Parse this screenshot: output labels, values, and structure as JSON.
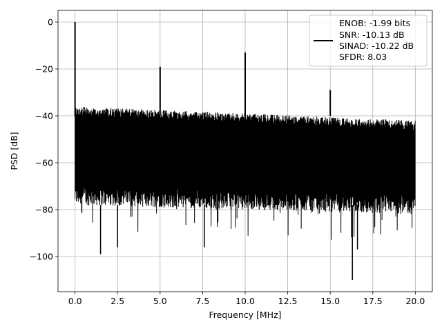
{
  "chart_data": {
    "type": "line",
    "xlabel": "Frequency [MHz]",
    "ylabel": "PSD [dB]",
    "xlim": [
      -1.0,
      21.0
    ],
    "ylim": [
      -115,
      5
    ],
    "xticks": [
      0.0,
      2.5,
      5.0,
      7.5,
      10.0,
      12.5,
      15.0,
      17.5,
      20.0
    ],
    "xtick_labels": [
      "0.0",
      "2.5",
      "5.0",
      "7.5",
      "10.0",
      "12.5",
      "15.0",
      "17.5",
      "20.0"
    ],
    "yticks": [
      0,
      -20,
      -40,
      -60,
      -80,
      -100
    ],
    "ytick_labels": [
      "0",
      "−20",
      "−40",
      "−60",
      "−80",
      "−100"
    ],
    "grid": true,
    "legend_position": "top-right",
    "legend_entries": [
      "ENOB: -1.99 bits",
      "SNR: -10.13 dB",
      "SINAD: -10.22 dB",
      "SFDR: 8.03"
    ],
    "series": [
      {
        "color": "#000000",
        "noise_floor": {
          "x_range": [
            0.0,
            20.0
          ],
          "upper_db": [
            -36,
            -42
          ],
          "lower_db": [
            -78,
            -82
          ],
          "min_dips_db": [
            -99,
            -110
          ]
        },
        "peaks": [
          {
            "x": 0.0,
            "y": 0
          },
          {
            "x": 5.0,
            "y": -19
          },
          {
            "x": 10.0,
            "y": -13
          },
          {
            "x": 15.0,
            "y": -29
          }
        ],
        "dips": [
          {
            "x": 1.5,
            "y": -99
          },
          {
            "x": 2.5,
            "y": -96
          },
          {
            "x": 7.6,
            "y": -96
          },
          {
            "x": 16.3,
            "y": -110
          },
          {
            "x": 16.6,
            "y": -97
          }
        ]
      }
    ]
  }
}
